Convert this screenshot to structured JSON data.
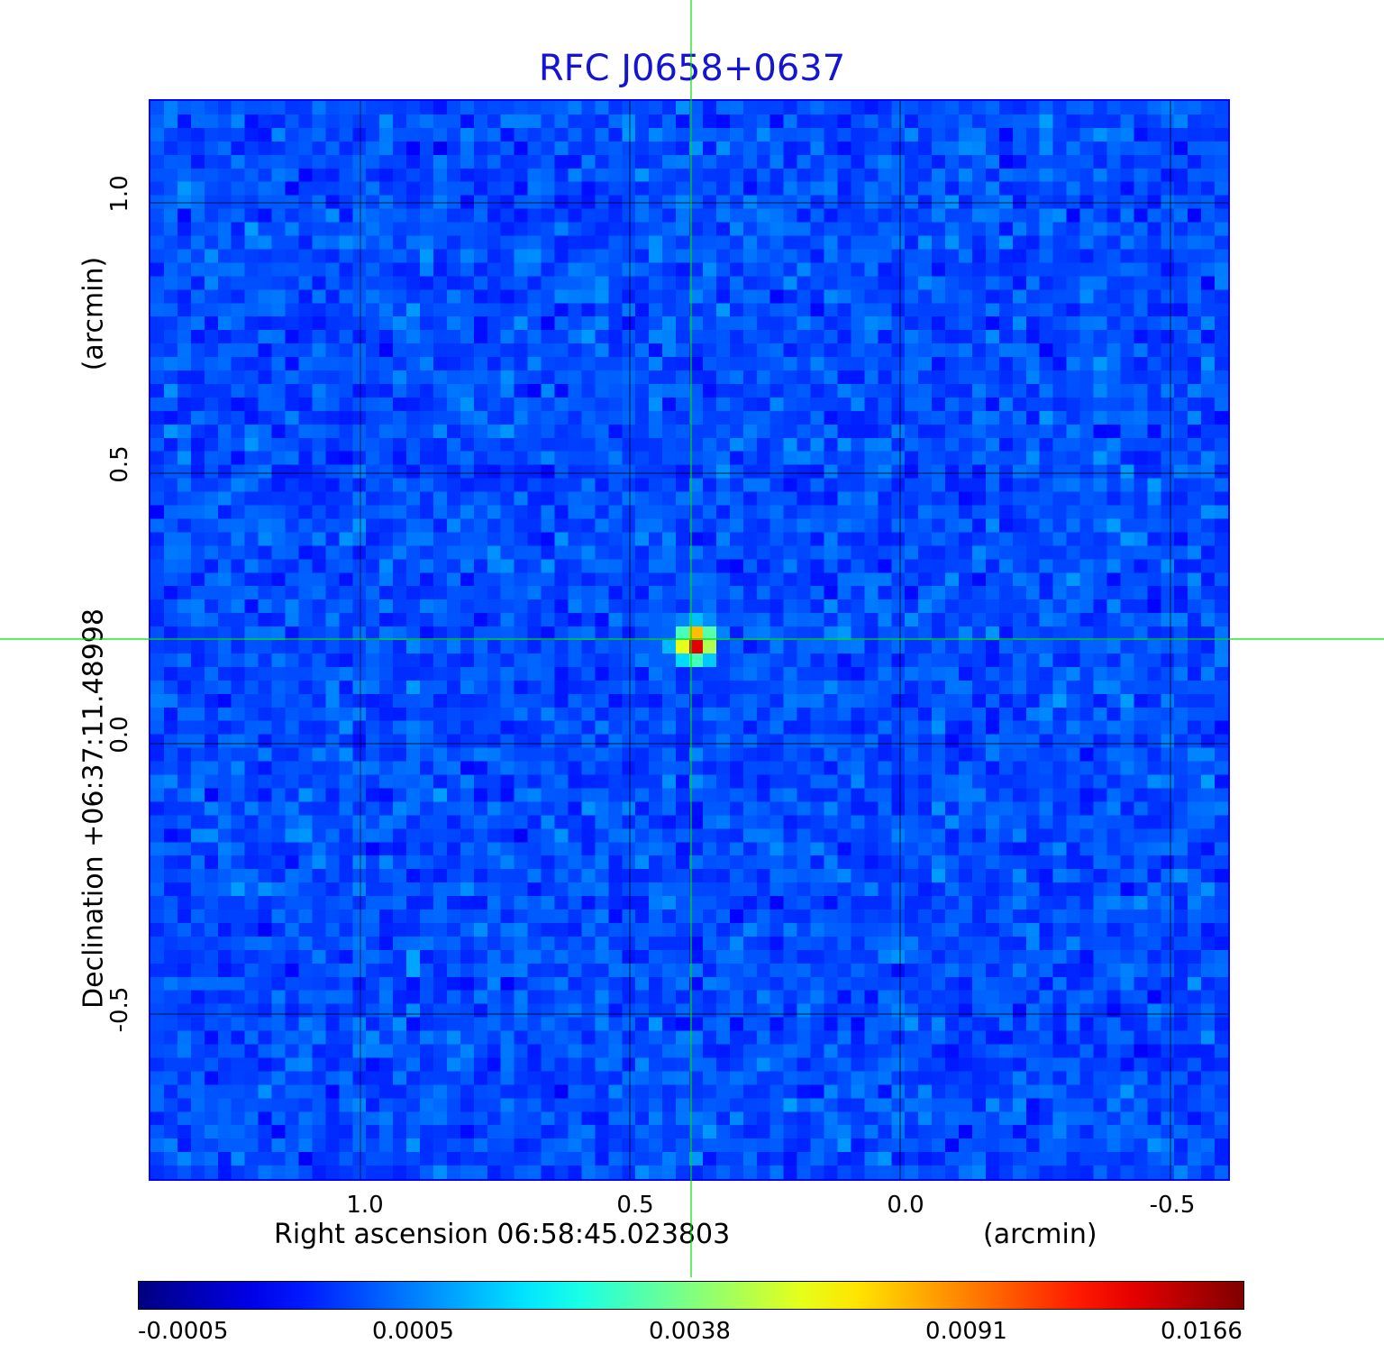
{
  "title": "RFC J0658+0637",
  "axes": {
    "x_label": "Right ascension  06:58:45.023803",
    "x_unit": "(arcmin)",
    "y_label": "Declination  +06:37:11.48998",
    "y_unit": "(arcmin)",
    "x_ticks": [
      "1.0",
      "0.5",
      "0.0",
      "-0.5"
    ],
    "y_ticks": [
      "1.0",
      "0.5",
      "0.0",
      "-0.5"
    ]
  },
  "colorbar": {
    "colormap": "jet",
    "tick_labels": [
      "-0.0005",
      "0.0005",
      "0.0038",
      "0.0091",
      "0.0166"
    ]
  },
  "colors": {
    "title": "#1414d2",
    "frame": "#0000ff",
    "crosshair": "#00e000",
    "grid": "#000000"
  },
  "image": {
    "type": "radio-map",
    "source_peak": 0.0166
  }
}
